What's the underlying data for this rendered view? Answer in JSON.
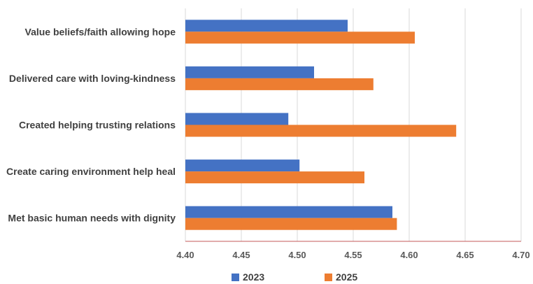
{
  "chart_data": {
    "type": "bar",
    "orientation": "horizontal",
    "title": "",
    "xlabel": "",
    "ylabel": "",
    "categories": [
      "Value beliefs/faith allowing hope",
      "Delivered care with loving-kindness",
      "Created helping trusting relations",
      "Create caring environment help heal",
      "Met basic human needs with dignity"
    ],
    "series": [
      {
        "name": "2023",
        "color": "#4472C4",
        "values": [
          4.545,
          4.515,
          4.492,
          4.502,
          4.585
        ]
      },
      {
        "name": "2025",
        "color": "#ED7D31",
        "values": [
          4.605,
          4.568,
          4.642,
          4.56,
          4.589
        ]
      }
    ],
    "xlim": [
      4.4,
      4.7
    ],
    "xticks": [
      "4.40",
      "4.45",
      "4.50",
      "4.55",
      "4.60",
      "4.65",
      "4.70"
    ],
    "grid": true,
    "legend": "bottom"
  }
}
